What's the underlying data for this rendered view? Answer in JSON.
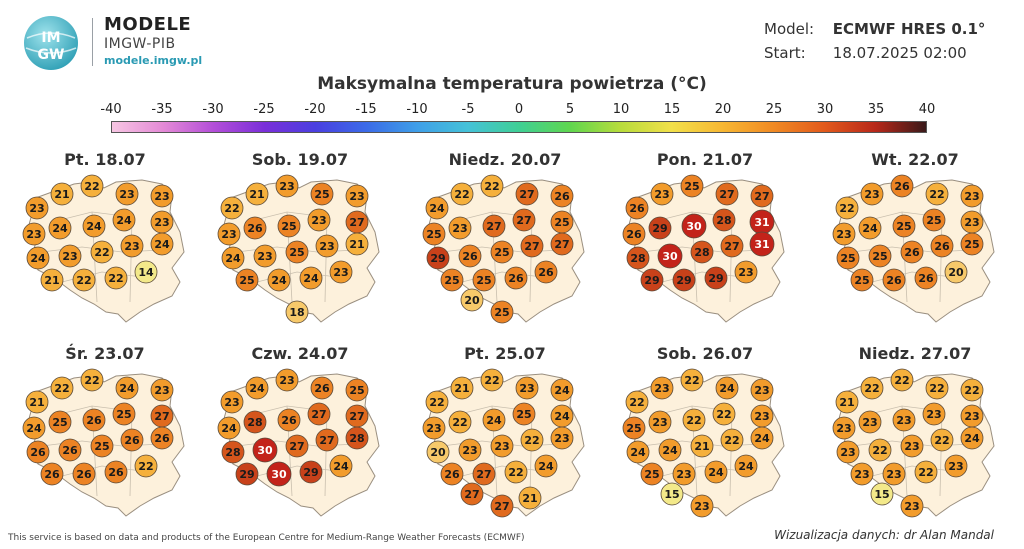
{
  "brand": {
    "logo_text_top": "IM",
    "logo_text_bottom": "GW",
    "title": "MODELE",
    "subtitle": "IMGW-PIB",
    "url": "modele.imgw.pl",
    "logo_icon": "imgw-globe-icon"
  },
  "meta": {
    "model_label": "Model:",
    "model_value": "ECMWF HRES 0.1°",
    "start_label": "Start:",
    "start_value": "18.07.2025 02:00"
  },
  "title": "Maksymalna temperatura powietrza (°C)",
  "scale": {
    "ticks": [
      "-40",
      "-35",
      "-30",
      "-25",
      "-20",
      "-15",
      "-10",
      "-5",
      "0",
      "5",
      "10",
      "15",
      "20",
      "25",
      "30",
      "35",
      "40"
    ],
    "colors": [
      "#f7c6e3",
      "#e48ad6",
      "#b34ed8",
      "#7a2fd9",
      "#4a3fe0",
      "#3b6be8",
      "#3f9fe8",
      "#45c2d8",
      "#3fcf95",
      "#5fd64f",
      "#b8dc3c",
      "#f2e04a",
      "#f7b733",
      "#f08a24",
      "#e25a1c",
      "#b8281a",
      "#3a1a1a"
    ]
  },
  "panels": [
    {
      "title": "Pt. 18.07",
      "values": [
        23,
        21,
        22,
        23,
        23,
        23,
        24,
        24,
        24,
        23,
        24,
        23,
        22,
        23,
        24,
        21,
        22,
        22,
        14
      ]
    },
    {
      "title": "Sob. 19.07",
      "values": [
        22,
        21,
        23,
        25,
        23,
        23,
        26,
        25,
        23,
        27,
        24,
        23,
        25,
        23,
        21,
        25,
        24,
        24,
        23,
        18
      ]
    },
    {
      "title": "Niedz. 20.07",
      "values": [
        24,
        22,
        22,
        27,
        26,
        25,
        23,
        27,
        27,
        25,
        29,
        26,
        25,
        27,
        27,
        25,
        25,
        26,
        26,
        25,
        20
      ]
    },
    {
      "title": "Pon. 21.07",
      "values": [
        26,
        23,
        25,
        27,
        27,
        26,
        29,
        30,
        28,
        31,
        28,
        30,
        28,
        27,
        31,
        29,
        29,
        29,
        23
      ]
    },
    {
      "title": "Wt. 22.07",
      "values": [
        22,
        23,
        26,
        22,
        23,
        23,
        24,
        25,
        25,
        23,
        25,
        25,
        26,
        26,
        25,
        25,
        26,
        26,
        20
      ]
    },
    {
      "title": "Śr. 23.07",
      "values": [
        21,
        22,
        22,
        24,
        23,
        24,
        25,
        26,
        25,
        27,
        26,
        26,
        25,
        26,
        26,
        26,
        26,
        26,
        22
      ]
    },
    {
      "title": "Czw. 24.07",
      "values": [
        23,
        24,
        23,
        26,
        25,
        24,
        28,
        26,
        27,
        27,
        28,
        30,
        27,
        27,
        28,
        29,
        30,
        29,
        24
      ]
    },
    {
      "title": "Pt. 25.07",
      "values": [
        22,
        21,
        22,
        23,
        24,
        23,
        22,
        24,
        25,
        24,
        20,
        23,
        23,
        22,
        23,
        26,
        27,
        22,
        24,
        27,
        27,
        21
      ]
    },
    {
      "title": "Sob. 26.07",
      "values": [
        22,
        23,
        22,
        24,
        23,
        25,
        23,
        22,
        22,
        23,
        24,
        24,
        21,
        22,
        24,
        25,
        23,
        24,
        24,
        23,
        15
      ]
    },
    {
      "title": "Niedz. 27.07",
      "values": [
        21,
        22,
        22,
        22,
        22,
        23,
        23,
        23,
        23,
        23,
        23,
        22,
        23,
        22,
        24,
        23,
        23,
        22,
        23,
        23,
        15
      ]
    }
  ],
  "footer": {
    "source": "This service is based on data and products of the European Centre for Medium-Range Weather Forecasts (ECMWF)",
    "credit": "Wizualizacja danych: dr Alan Mandal"
  }
}
